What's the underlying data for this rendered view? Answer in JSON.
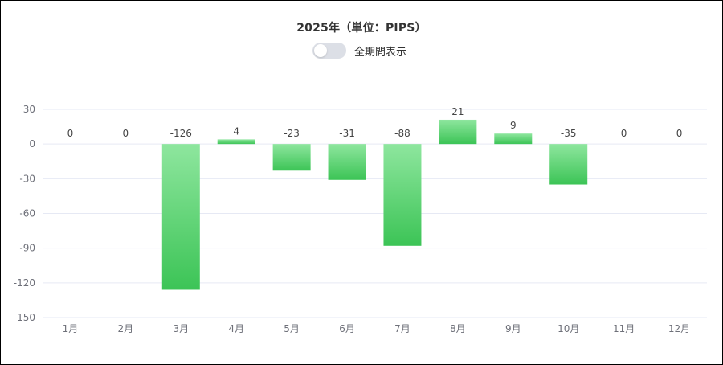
{
  "toggle": {
    "label": "全期間表示",
    "on": false
  },
  "chart_data": {
    "type": "bar",
    "title": "2025年（単位：PIPS）",
    "categories": [
      "1月",
      "2月",
      "3月",
      "4月",
      "5月",
      "6月",
      "7月",
      "8月",
      "9月",
      "10月",
      "11月",
      "12月"
    ],
    "values": [
      0,
      0,
      -126,
      4,
      -23,
      -31,
      -88,
      21,
      9,
      -35,
      0,
      0
    ],
    "data_labels": [
      "0",
      "0",
      "-126",
      "4",
      "-23",
      "-31",
      "-88",
      "21",
      "9",
      "-35",
      "0",
      "0"
    ],
    "ylim": [
      -150,
      30
    ],
    "yticks": [
      30,
      0,
      -30,
      -60,
      -90,
      -120,
      -150
    ],
    "grid": true,
    "bar_color_top": "#8ee69e",
    "bar_color_bottom": "#3cc456",
    "grid_color": "#e6e9f4"
  }
}
